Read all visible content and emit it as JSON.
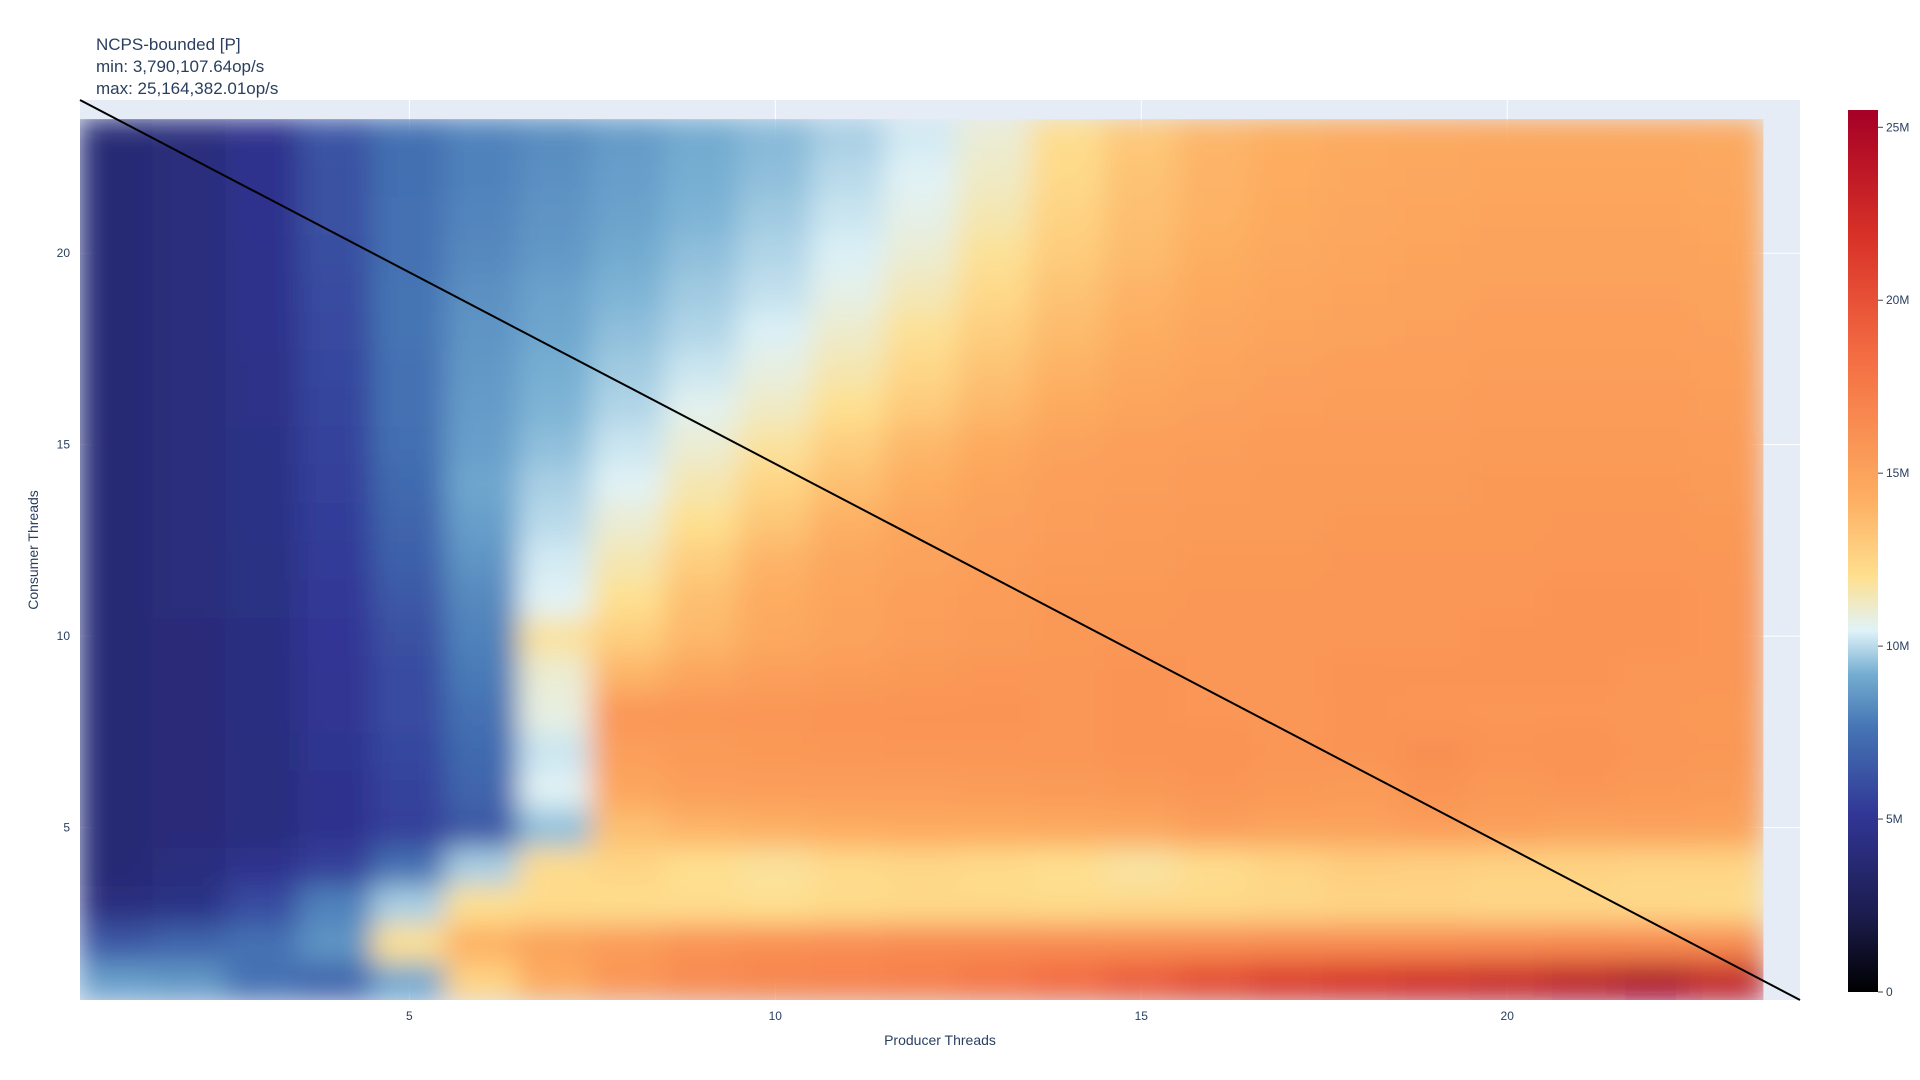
{
  "chart_data": {
    "type": "heatmap",
    "title_lines": [
      "NCPS-bounded [P]",
      "min: 3,790,107.64op/s",
      "max: 25,164,382.01op/s"
    ],
    "xlabel": "Producer Threads",
    "ylabel": "Consumer Threads",
    "x_range": [
      0.5,
      24
    ],
    "y_range": [
      0.5,
      24
    ],
    "x_ticks": [
      5,
      10,
      15,
      20
    ],
    "y_ticks": [
      5,
      10,
      15,
      20
    ],
    "x": [
      1,
      2,
      3,
      4,
      5,
      6,
      7,
      8,
      9,
      10,
      11,
      12,
      13,
      14,
      15,
      16,
      17,
      18,
      19,
      20,
      21,
      22,
      23
    ],
    "y": [
      1,
      2,
      3,
      4,
      5,
      6,
      7,
      8,
      9,
      10,
      11,
      12,
      13,
      14,
      15,
      16,
      17,
      18,
      19,
      20,
      21,
      22,
      23
    ],
    "z_range": [
      0,
      25.5
    ],
    "z_unit": "M op/s",
    "colorbar_ticks": [
      0,
      5,
      10,
      15,
      20,
      25
    ],
    "colorbar_tick_labels": [
      "0",
      "5M",
      "10M",
      "15M",
      "20M",
      "25M"
    ],
    "colorscale": "RdYlBu_r",
    "grid": true,
    "diagonal_line": {
      "from": [
        0.5,
        24
      ],
      "to": [
        24,
        0.5
      ],
      "color": "#000000"
    },
    "z": [
      [
        8.8,
        8.6,
        7.5,
        7.0,
        9.0,
        12.6,
        14.5,
        15.8,
        16.5,
        16.8,
        17.0,
        17.2,
        17.8,
        18.5,
        19.5,
        20.5,
        21.5,
        22.0,
        22.5,
        23.0,
        24.0,
        25.1,
        23.5
      ],
      [
        6.5,
        7.0,
        7.5,
        8.5,
        12.0,
        14.2,
        15.0,
        15.5,
        16.0,
        16.2,
        16.3,
        16.5,
        16.5,
        16.5,
        16.4,
        16.4,
        16.5,
        16.5,
        16.5,
        16.5,
        16.6,
        16.6,
        16.5
      ],
      [
        4.2,
        4.5,
        6.0,
        8.0,
        9.8,
        12.0,
        12.2,
        12.1,
        12.1,
        12.0,
        12.2,
        12.3,
        12.3,
        12.2,
        12.3,
        12.3,
        12.4,
        12.5,
        12.5,
        12.4,
        12.4,
        12.3,
        12.2
      ],
      [
        3.8,
        4.2,
        4.8,
        5.5,
        7.5,
        9.8,
        12.2,
        12.5,
        12.0,
        11.8,
        12.2,
        12.4,
        12.2,
        12.0,
        11.7,
        12.1,
        12.5,
        12.8,
        12.7,
        12.6,
        12.6,
        12.5,
        12.5
      ],
      [
        3.8,
        4.0,
        4.2,
        4.8,
        5.5,
        6.5,
        9.5,
        13.5,
        14.0,
        14.2,
        14.4,
        14.5,
        14.5,
        14.6,
        14.7,
        15.2,
        15.0,
        15.0,
        15.3,
        15.2,
        15.0,
        15.1,
        15.0
      ],
      [
        3.8,
        4.0,
        4.2,
        4.8,
        5.6,
        7.0,
        10.5,
        14.8,
        15.2,
        15.3,
        15.3,
        15.3,
        15.4,
        15.5,
        15.6,
        15.8,
        15.6,
        15.5,
        15.9,
        15.6,
        15.8,
        15.6,
        15.5
      ],
      [
        3.8,
        4.0,
        4.2,
        4.9,
        5.8,
        7.2,
        10.2,
        15.2,
        15.5,
        15.6,
        15.7,
        15.8,
        15.8,
        15.8,
        15.9,
        16.0,
        15.8,
        15.9,
        16.2,
        15.9,
        16.0,
        15.8,
        15.7
      ],
      [
        3.8,
        4.0,
        4.3,
        5.0,
        6.0,
        7.5,
        10.8,
        15.8,
        15.8,
        15.8,
        15.9,
        15.9,
        15.9,
        15.8,
        15.9,
        15.8,
        15.7,
        15.9,
        15.8,
        15.8,
        15.8,
        15.7,
        15.6
      ],
      [
        3.8,
        4.0,
        4.3,
        5.0,
        6.0,
        7.8,
        11.0,
        14.0,
        14.8,
        15.2,
        15.4,
        15.6,
        15.8,
        15.8,
        15.9,
        15.8,
        15.8,
        15.9,
        15.9,
        15.9,
        15.9,
        15.8,
        15.8
      ],
      [
        3.8,
        4.0,
        4.3,
        5.1,
        6.2,
        8.0,
        11.8,
        12.8,
        13.8,
        14.6,
        15.0,
        15.3,
        15.5,
        15.6,
        15.7,
        15.8,
        15.8,
        15.8,
        15.8,
        15.9,
        15.9,
        15.9,
        15.8
      ],
      [
        3.8,
        4.1,
        4.4,
        5.2,
        6.5,
        8.2,
        10.5,
        12.0,
        13.5,
        14.4,
        14.9,
        15.2,
        15.4,
        15.6,
        15.6,
        15.7,
        15.7,
        15.8,
        15.8,
        15.8,
        15.9,
        15.9,
        15.8
      ],
      [
        3.8,
        4.1,
        4.4,
        5.3,
        6.8,
        8.5,
        10.3,
        11.5,
        12.8,
        14.0,
        14.7,
        15.0,
        15.2,
        15.4,
        15.5,
        15.6,
        15.6,
        15.7,
        15.7,
        15.7,
        15.8,
        15.8,
        15.7
      ],
      [
        3.8,
        4.1,
        4.5,
        5.4,
        7.0,
        8.8,
        10.0,
        11.0,
        12.0,
        13.2,
        14.2,
        14.8,
        15.1,
        15.3,
        15.4,
        15.5,
        15.5,
        15.6,
        15.6,
        15.6,
        15.7,
        15.7,
        15.6
      ],
      [
        3.8,
        4.1,
        4.5,
        5.5,
        7.2,
        9.0,
        9.8,
        10.5,
        11.5,
        12.5,
        13.5,
        14.3,
        14.9,
        15.2,
        15.3,
        15.4,
        15.5,
        15.5,
        15.5,
        15.6,
        15.6,
        15.6,
        15.5
      ],
      [
        3.8,
        4.1,
        4.5,
        5.6,
        7.4,
        8.8,
        9.5,
        10.2,
        11.0,
        11.8,
        12.8,
        13.8,
        14.5,
        15.0,
        15.2,
        15.3,
        15.4,
        15.4,
        15.4,
        15.5,
        15.5,
        15.5,
        15.4
      ],
      [
        3.8,
        4.1,
        4.6,
        5.7,
        7.5,
        8.7,
        9.3,
        9.9,
        10.6,
        11.2,
        12.0,
        13.0,
        13.8,
        14.5,
        14.9,
        15.1,
        15.2,
        15.3,
        15.3,
        15.4,
        15.4,
        15.4,
        15.3
      ],
      [
        3.8,
        4.1,
        4.6,
        5.8,
        7.5,
        8.6,
        9.2,
        9.7,
        10.2,
        10.8,
        11.5,
        12.4,
        13.3,
        14.1,
        14.6,
        14.9,
        15.1,
        15.2,
        15.2,
        15.3,
        15.3,
        15.3,
        15.2
      ],
      [
        3.8,
        4.1,
        4.7,
        5.9,
        7.6,
        8.5,
        9.0,
        9.5,
        9.9,
        10.4,
        11.1,
        11.9,
        12.8,
        13.7,
        14.3,
        14.7,
        14.9,
        15.0,
        15.1,
        15.2,
        15.2,
        15.2,
        15.1
      ],
      [
        3.8,
        4.1,
        4.7,
        6.0,
        7.6,
        8.4,
        8.9,
        9.3,
        9.7,
        10.1,
        10.7,
        11.4,
        12.3,
        13.3,
        14.0,
        14.5,
        14.8,
        14.9,
        15.0,
        15.1,
        15.1,
        15.1,
        15.0
      ],
      [
        3.8,
        4.1,
        4.7,
        6.1,
        7.5,
        8.2,
        8.6,
        9.1,
        9.5,
        9.9,
        10.4,
        11.0,
        11.9,
        12.9,
        13.7,
        14.3,
        14.6,
        14.8,
        14.9,
        15.0,
        15.0,
        15.0,
        14.9
      ],
      [
        3.8,
        4.1,
        4.8,
        6.2,
        7.5,
        8.1,
        8.5,
        8.9,
        9.3,
        9.7,
        10.2,
        10.7,
        11.5,
        12.6,
        13.5,
        14.1,
        14.5,
        14.7,
        14.8,
        14.9,
        14.9,
        14.9,
        14.8
      ],
      [
        3.8,
        4.1,
        4.8,
        6.2,
        7.4,
        8.0,
        8.4,
        8.8,
        9.2,
        9.5,
        10.0,
        10.5,
        11.2,
        12.3,
        13.3,
        14.0,
        14.4,
        14.6,
        14.7,
        14.8,
        14.8,
        14.8,
        14.7
      ],
      [
        3.8,
        4.1,
        4.8,
        6.3,
        7.4,
        8.0,
        8.3,
        8.7,
        9.1,
        9.4,
        9.8,
        10.3,
        11.0,
        12.1,
        13.1,
        13.9,
        14.3,
        14.5,
        14.6,
        14.7,
        14.7,
        14.7,
        14.6
      ]
    ]
  }
}
